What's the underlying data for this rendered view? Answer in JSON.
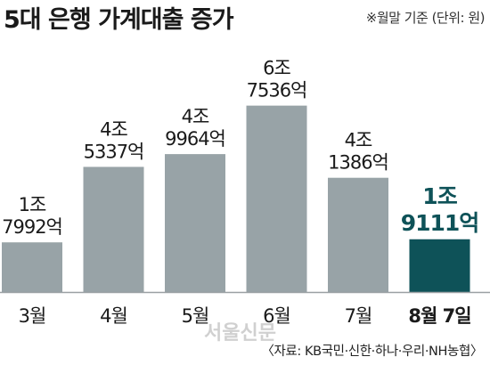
{
  "title": "5대 은행 가계대출 증가",
  "note": "※월말 기준 (단위: 원)",
  "source": "〈자료: KB국민·신한·하나·우리·NH농협〉",
  "watermark": "서울신문",
  "colors": {
    "bar": "#98a3a7",
    "highlight": "#0e5258",
    "axis": "#9aa0a3",
    "text": "#1a1a1a"
  },
  "chart_data": {
    "type": "bar",
    "title": "5대 은행 가계대출 증가",
    "unit": "원",
    "categories": [
      "3월",
      "4월",
      "5월",
      "6월",
      "7월",
      "8월 7일"
    ],
    "values": [
      17992,
      45337,
      49964,
      67536,
      41386,
      19111
    ],
    "value_unit": "억원",
    "labels": [
      [
        "1조",
        "7992억"
      ],
      [
        "4조",
        "5337억"
      ],
      [
        "4조",
        "9964억"
      ],
      [
        "6조",
        "7536억"
      ],
      [
        "4조",
        "1386억"
      ],
      [
        "1조",
        "9111억"
      ]
    ],
    "highlight_index": 5,
    "ylim": [
      0,
      70000
    ]
  }
}
